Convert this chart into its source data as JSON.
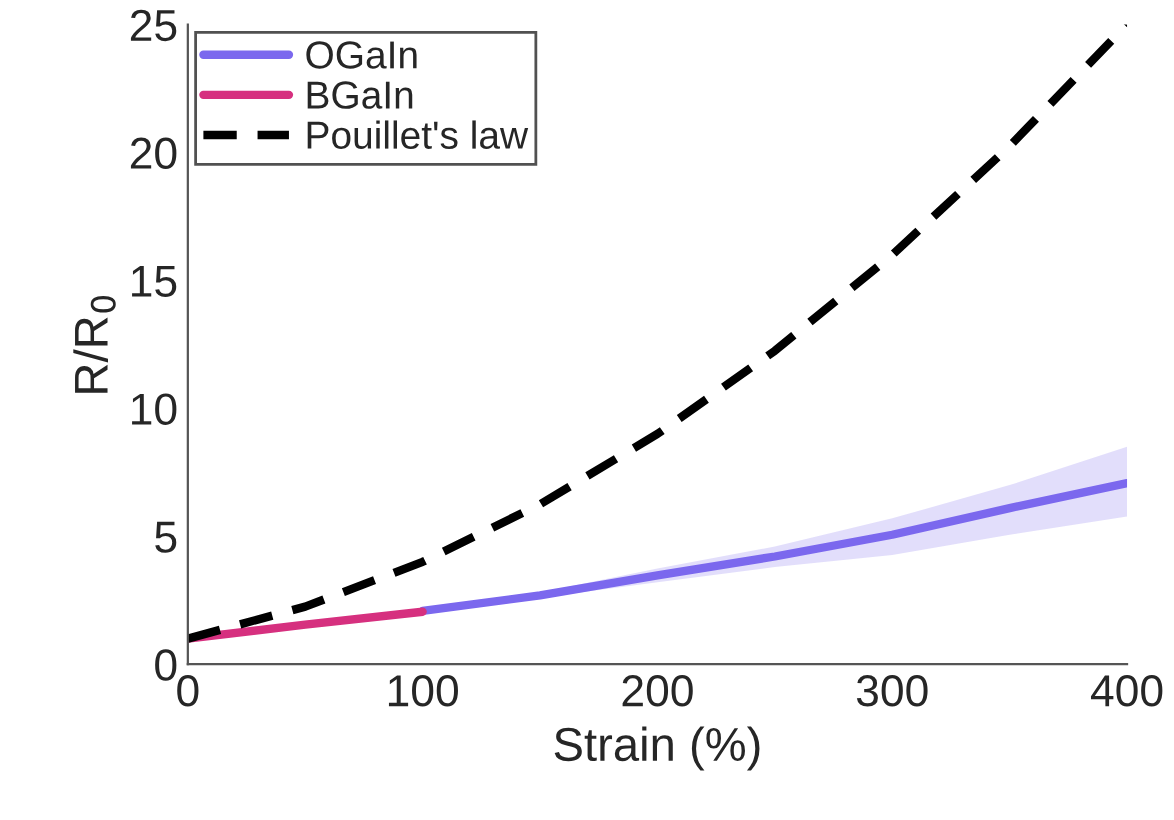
{
  "chart_data": {
    "type": "line",
    "xlabel": "Strain (%)",
    "ylabel": "R/R$_{0}$",
    "xlim": [
      0,
      400
    ],
    "ylim": [
      0,
      25
    ],
    "xticks": [
      0,
      100,
      200,
      300,
      400
    ],
    "yticks": [
      0,
      5,
      10,
      15,
      20,
      25
    ],
    "grid": false,
    "legend": "top left",
    "line_style": "solid",
    "marker": "none",
    "series": [
      {
        "name": "OGaIn",
        "color": "#7b68ee",
        "x": [
          100,
          150,
          200,
          250,
          300,
          350,
          400
        ],
        "values": [
          2.08,
          2.69,
          3.47,
          4.21,
          5.06,
          6.1,
          7.08
        ],
        "lower": [
          2.05,
          2.6,
          3.2,
          3.8,
          4.27,
          5.06,
          5.77
        ],
        "upper": [
          2.11,
          2.8,
          3.74,
          4.6,
          5.7,
          7.0,
          8.5
        ]
      },
      {
        "name": "BGaIn",
        "color": "#d6307f",
        "x": [
          0,
          50,
          100
        ],
        "values": [
          1.0,
          1.55,
          2.05
        ]
      },
      {
        "name": "Pouillet's law",
        "color": "#000000",
        "line_style": "dashed",
        "x": [
          0,
          50,
          100,
          150,
          200,
          250,
          300,
          350,
          400
        ],
        "values": [
          1,
          2.25,
          4,
          6.25,
          9,
          12.25,
          16,
          20.25,
          25
        ]
      }
    ]
  }
}
